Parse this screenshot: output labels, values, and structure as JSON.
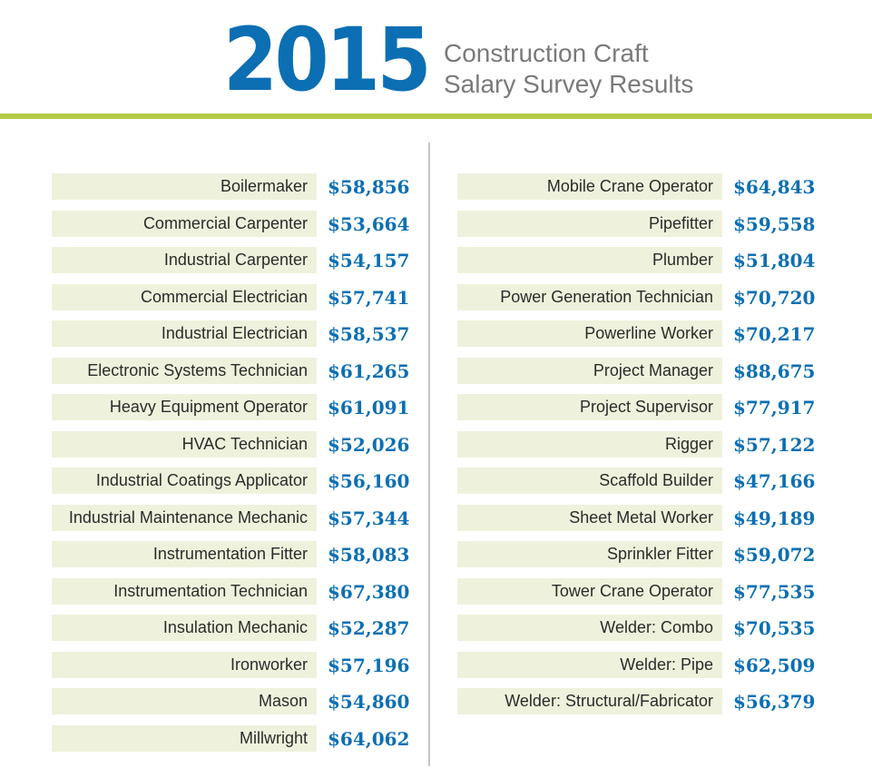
{
  "header": {
    "year": "2015",
    "subtitle_line1": "Construction Craft",
    "subtitle_line2": "Salary Survey Results"
  },
  "colors": {
    "accent_blue": "#0c6fb3",
    "rule_green": "#b3cc4a",
    "row_background": "#eef2dc"
  },
  "left_column": [
    {
      "craft": "Boilermaker",
      "salary": "$58,856"
    },
    {
      "craft": "Commercial Carpenter",
      "salary": "$53,664"
    },
    {
      "craft": "Industrial Carpenter",
      "salary": "$54,157"
    },
    {
      "craft": "Commercial Electrician",
      "salary": "$57,741"
    },
    {
      "craft": "Industrial Electrician",
      "salary": "$58,537"
    },
    {
      "craft": "Electronic Systems Technician",
      "salary": "$61,265"
    },
    {
      "craft": "Heavy Equipment Operator",
      "salary": "$61,091"
    },
    {
      "craft": "HVAC Technician",
      "salary": "$52,026"
    },
    {
      "craft": "Industrial Coatings Applicator",
      "salary": "$56,160"
    },
    {
      "craft": "Industrial Maintenance Mechanic",
      "salary": "$57,344"
    },
    {
      "craft": "Instrumentation Fitter",
      "salary": "$58,083"
    },
    {
      "craft": "Instrumentation Technician",
      "salary": "$67,380"
    },
    {
      "craft": "Insulation Mechanic",
      "salary": "$52,287"
    },
    {
      "craft": "Ironworker",
      "salary": "$57,196"
    },
    {
      "craft": "Mason",
      "salary": "$54,860"
    },
    {
      "craft": "Millwright",
      "salary": "$64,062"
    }
  ],
  "right_column": [
    {
      "craft": "Mobile Crane Operator",
      "salary": "$64,843"
    },
    {
      "craft": "Pipefitter",
      "salary": "$59,558"
    },
    {
      "craft": "Plumber",
      "salary": "$51,804"
    },
    {
      "craft": "Power Generation Technician",
      "salary": "$70,720"
    },
    {
      "craft": "Powerline Worker",
      "salary": "$70,217"
    },
    {
      "craft": "Project Manager",
      "salary": "$88,675"
    },
    {
      "craft": "Project Supervisor",
      "salary": "$77,917"
    },
    {
      "craft": "Rigger",
      "salary": "$57,122"
    },
    {
      "craft": "Scaffold Builder",
      "salary": "$47,166"
    },
    {
      "craft": "Sheet Metal Worker",
      "salary": "$49,189"
    },
    {
      "craft": "Sprinkler Fitter",
      "salary": "$59,072"
    },
    {
      "craft": "Tower Crane Operator",
      "salary": "$77,535"
    },
    {
      "craft": "Welder: Combo",
      "salary": "$70,535"
    },
    {
      "craft": "Welder: Pipe",
      "salary": "$62,509"
    },
    {
      "craft": "Welder: Structural/Fabricator",
      "salary": "$56,379"
    }
  ]
}
